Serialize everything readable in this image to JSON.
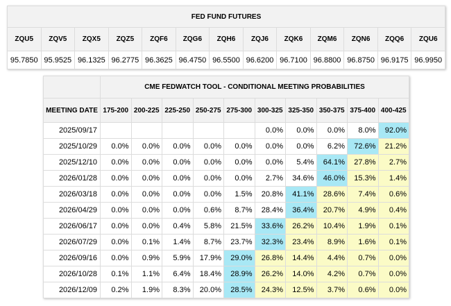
{
  "futures": {
    "title": "FED FUND FUTURES",
    "contracts": [
      {
        "symbol": "ZQU5",
        "price": "95.7850"
      },
      {
        "symbol": "ZQV5",
        "price": "95.9525"
      },
      {
        "symbol": "ZQX5",
        "price": "96.1325"
      },
      {
        "symbol": "ZQZ5",
        "price": "96.2775"
      },
      {
        "symbol": "ZQF6",
        "price": "96.3625"
      },
      {
        "symbol": "ZQG6",
        "price": "96.4750"
      },
      {
        "symbol": "ZQH6",
        "price": "96.5500"
      },
      {
        "symbol": "ZQJ6",
        "price": "96.6200"
      },
      {
        "symbol": "ZQK6",
        "price": "96.7100"
      },
      {
        "symbol": "ZQM6",
        "price": "96.8800"
      },
      {
        "symbol": "ZQN6",
        "price": "96.8750"
      },
      {
        "symbol": "ZQQ6",
        "price": "96.9175"
      },
      {
        "symbol": "ZQU6",
        "price": "96.9950"
      }
    ]
  },
  "fedwatch": {
    "title": "CME FEDWATCH TOOL - CONDITIONAL MEETING PROBABILITIES",
    "date_header": "MEETING DATE",
    "ranges": [
      "175-200",
      "200-225",
      "225-250",
      "250-275",
      "275-300",
      "300-325",
      "325-350",
      "350-375",
      "375-400",
      "400-425"
    ],
    "colors": {
      "max": "#a8e8f5",
      "high": "#fbfbc6"
    },
    "rows": [
      {
        "date": "2025/09/17",
        "probs": [
          "",
          "",
          "",
          "",
          "",
          "0.0%",
          "0.0%",
          "0.0%",
          "8.0%",
          "92.0%"
        ],
        "max": 9,
        "high": []
      },
      {
        "date": "2025/10/29",
        "probs": [
          "0.0%",
          "0.0%",
          "0.0%",
          "0.0%",
          "0.0%",
          "0.0%",
          "0.0%",
          "6.2%",
          "72.6%",
          "21.2%"
        ],
        "max": 8,
        "high": [
          9
        ]
      },
      {
        "date": "2025/12/10",
        "probs": [
          "0.0%",
          "0.0%",
          "0.0%",
          "0.0%",
          "0.0%",
          "0.0%",
          "5.4%",
          "64.1%",
          "27.8%",
          "2.7%"
        ],
        "max": 7,
        "high": [
          8,
          9
        ]
      },
      {
        "date": "2026/01/28",
        "probs": [
          "0.0%",
          "0.0%",
          "0.0%",
          "0.0%",
          "0.0%",
          "2.7%",
          "34.6%",
          "46.0%",
          "15.3%",
          "1.4%"
        ],
        "max": 7,
        "high": [
          8,
          9
        ]
      },
      {
        "date": "2026/03/18",
        "probs": [
          "0.0%",
          "0.0%",
          "0.0%",
          "0.0%",
          "1.5%",
          "20.8%",
          "41.1%",
          "28.6%",
          "7.4%",
          "0.6%"
        ],
        "max": 6,
        "high": [
          7,
          8,
          9
        ]
      },
      {
        "date": "2026/04/29",
        "probs": [
          "0.0%",
          "0.0%",
          "0.0%",
          "0.6%",
          "8.7%",
          "28.4%",
          "36.4%",
          "20.7%",
          "4.9%",
          "0.4%"
        ],
        "max": 6,
        "high": [
          7,
          8,
          9
        ]
      },
      {
        "date": "2026/06/17",
        "probs": [
          "0.0%",
          "0.0%",
          "0.4%",
          "5.8%",
          "21.5%",
          "33.6%",
          "26.2%",
          "10.4%",
          "1.9%",
          "0.1%"
        ],
        "max": 5,
        "high": [
          6,
          7,
          8,
          9
        ]
      },
      {
        "date": "2026/07/29",
        "probs": [
          "0.0%",
          "0.1%",
          "1.4%",
          "8.7%",
          "23.7%",
          "32.3%",
          "23.4%",
          "8.9%",
          "1.6%",
          "0.1%"
        ],
        "max": 5,
        "high": [
          6,
          7,
          8,
          9
        ]
      },
      {
        "date": "2026/09/16",
        "probs": [
          "0.0%",
          "0.9%",
          "5.9%",
          "17.9%",
          "29.0%",
          "26.8%",
          "14.4%",
          "4.4%",
          "0.7%",
          "0.0%"
        ],
        "max": 4,
        "high": [
          5,
          6,
          7,
          8,
          9
        ]
      },
      {
        "date": "2026/10/28",
        "probs": [
          "0.1%",
          "1.1%",
          "6.4%",
          "18.4%",
          "28.9%",
          "26.2%",
          "14.0%",
          "4.2%",
          "0.7%",
          "0.0%"
        ],
        "max": 4,
        "high": [
          5,
          6,
          7,
          8,
          9
        ]
      },
      {
        "date": "2026/12/09",
        "probs": [
          "0.2%",
          "1.9%",
          "8.3%",
          "20.0%",
          "28.5%",
          "24.3%",
          "12.5%",
          "3.7%",
          "0.6%",
          "0.0%"
        ],
        "max": 4,
        "high": [
          5,
          6,
          7,
          8,
          9
        ]
      }
    ]
  }
}
